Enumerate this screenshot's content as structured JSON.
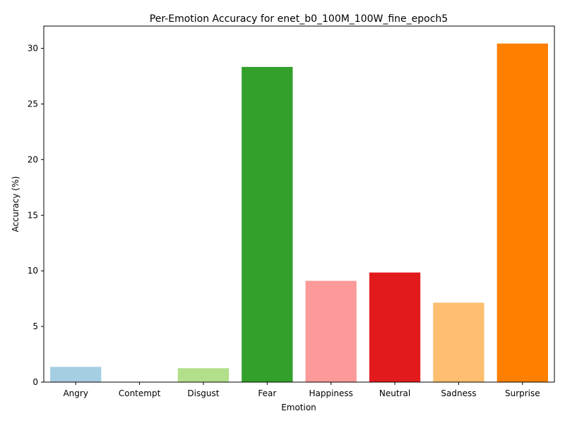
{
  "chart_data": {
    "type": "bar",
    "title": "Per-Emotion Accuracy for enet_b0_100M_100W_fine_epoch5",
    "xlabel": "Emotion",
    "ylabel": "Accuracy (%)",
    "categories": [
      "Angry",
      "Contempt",
      "Disgust",
      "Fear",
      "Happiness",
      "Neutral",
      "Sadness",
      "Surprise"
    ],
    "values": [
      1.37,
      0.0,
      1.25,
      28.33,
      9.1,
      9.85,
      7.14,
      30.43
    ],
    "colors": [
      "#a6cee3",
      "#1f78b4",
      "#b2df8a",
      "#33a02c",
      "#fb9a99",
      "#e31a1c",
      "#fdbf6f",
      "#ff7f00"
    ],
    "ylim": [
      0,
      32
    ],
    "yticks": [
      0,
      5,
      10,
      15,
      20,
      25,
      30
    ],
    "grid": false,
    "legend": "none"
  }
}
